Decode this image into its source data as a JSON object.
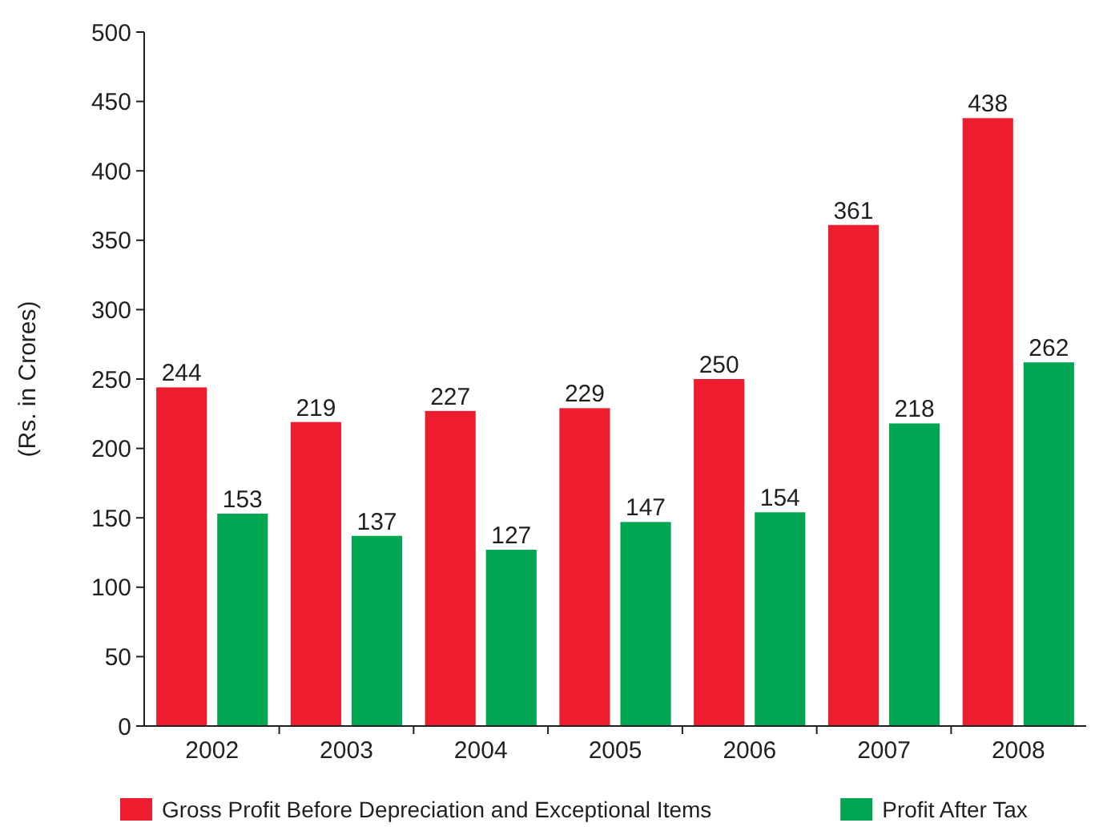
{
  "chart_data": {
    "type": "bar",
    "ylabel": "(Rs. in Crores)",
    "categories": [
      "2002",
      "2003",
      "2004",
      "2005",
      "2006",
      "2007",
      "2008"
    ],
    "series": [
      {
        "name": "Gross Profit Before Depreciation and Exceptional Items",
        "color": "#ed1c2e",
        "values": [
          244,
          219,
          227,
          229,
          250,
          361,
          438
        ]
      },
      {
        "name": "Profit After Tax",
        "color": "#00a651",
        "values": [
          153,
          137,
          127,
          147,
          154,
          218,
          262
        ]
      }
    ],
    "ylim": [
      0,
      500
    ],
    "yticks": [
      0,
      50,
      100,
      150,
      200,
      250,
      300,
      350,
      400,
      450,
      500
    ],
    "grid": false,
    "legend": "bottom",
    "data_labels": true
  }
}
